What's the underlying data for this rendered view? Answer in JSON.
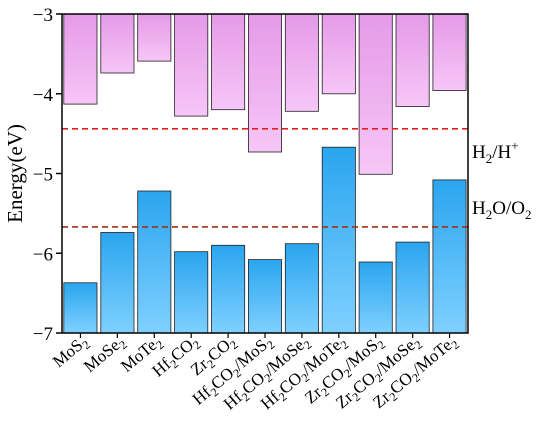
{
  "chart_data": {
    "type": "bar",
    "categories": [
      {
        "base": "MoS",
        "sub": "2",
        "rest": "",
        "sub2": "",
        "rest2": ""
      },
      {
        "base": "MoSe",
        "sub": "2",
        "rest": "",
        "sub2": "",
        "rest2": ""
      },
      {
        "base": "MoTe",
        "sub": "2",
        "rest": "",
        "sub2": "",
        "rest2": ""
      },
      {
        "base": "Hf",
        "sub": "2",
        "rest": "CO",
        "sub2": "2",
        "rest2": ""
      },
      {
        "base": "Zr",
        "sub": "2",
        "rest": "CO",
        "sub2": "2",
        "rest2": ""
      },
      {
        "base": "Hf",
        "sub": "2",
        "rest": "CO",
        "sub2": "2",
        "rest2": "/MoS",
        "sub3": "2"
      },
      {
        "base": "Hf",
        "sub": "2",
        "rest": "CO",
        "sub2": "2",
        "rest2": "/MoSe",
        "sub3": "2"
      },
      {
        "base": "Hf",
        "sub": "2",
        "rest": "CO",
        "sub2": "2",
        "rest2": "/MoTe",
        "sub3": "2"
      },
      {
        "base": "Zr",
        "sub": "2",
        "rest": "CO",
        "sub2": "2",
        "rest2": "/MoS",
        "sub3": "2"
      },
      {
        "base": "Zr",
        "sub": "2",
        "rest": "CO",
        "sub2": "2",
        "rest2": "/MoSe",
        "sub3": "2"
      },
      {
        "base": "Zr",
        "sub": "2",
        "rest": "CO",
        "sub2": "2",
        "rest2": "/MoTe",
        "sub3": "2"
      }
    ],
    "series": [
      {
        "values": [
          -4.13,
          -3.74,
          -3.59,
          -4.28,
          -4.2,
          -4.73,
          -4.22,
          -4.0,
          -5.01,
          -4.16,
          -3.96
        ],
        "color": "#f0a8f0",
        "ref": "top"
      },
      {
        "values": [
          -6.37,
          -5.74,
          -5.22,
          -5.98,
          -5.9,
          -6.08,
          -5.88,
          -4.67,
          -6.11,
          -5.86,
          -5.08
        ],
        "color": "#2ea6ee",
        "ref": "bottom"
      }
    ],
    "ylabel": "Energy(eV)",
    "ylim": [
      -7,
      -3
    ],
    "yticks": [
      "−3",
      "−4",
      "−5",
      "−6",
      "−7"
    ],
    "ytick_values": [
      -3,
      -4,
      -5,
      -6,
      -7
    ],
    "reference_lines": [
      {
        "y": -4.44,
        "label": "H",
        "label_sub": "2",
        "label_rest": "/H",
        "label_sup": "+",
        "color": "#e02020"
      },
      {
        "y": -5.67,
        "label": "H",
        "label_sub": "2",
        "label_rest": "O/O",
        "label_sub2": "2",
        "color": "#a03018"
      }
    ],
    "grid": false,
    "legend": "none"
  }
}
